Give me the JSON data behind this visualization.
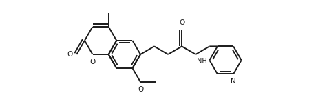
{
  "bg_color": "#ffffff",
  "line_color": "#1a1a1a",
  "line_width": 1.4,
  "font_size": 7.5,
  "fig_width": 4.62,
  "fig_height": 1.38,
  "dpi": 100,
  "xlim": [
    0,
    462
  ],
  "ylim": [
    0,
    138
  ]
}
